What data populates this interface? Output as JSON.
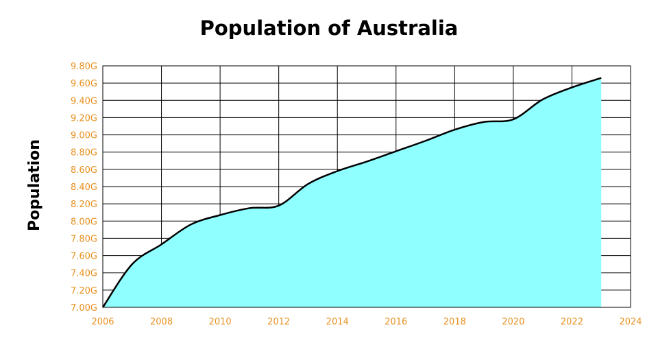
{
  "chart_data": {
    "type": "area",
    "title": "Population of Australia",
    "xlabel": "",
    "ylabel": "Population",
    "x": [
      2006,
      2007,
      2008,
      2009,
      2010,
      2011,
      2012,
      2013,
      2014,
      2015,
      2016,
      2017,
      2018,
      2019,
      2020,
      2021,
      2022,
      2023
    ],
    "series": [
      {
        "values": [
          7.0,
          7.5,
          7.73,
          7.96,
          8.07,
          8.15,
          8.18,
          8.43,
          8.58,
          8.69,
          8.81,
          8.93,
          9.06,
          9.15,
          9.18,
          9.41,
          9.55,
          9.66
        ]
      }
    ],
    "xlim": [
      2006,
      2024
    ],
    "ylim": [
      7.0,
      9.8
    ],
    "x_ticks": [
      2006,
      2008,
      2010,
      2012,
      2014,
      2016,
      2018,
      2020,
      2022,
      2024
    ],
    "x_tick_labels": [
      "2006",
      "2008",
      "2010",
      "2012",
      "2014",
      "2016",
      "2018",
      "2020",
      "2022",
      "2024"
    ],
    "y_ticks": [
      7.0,
      7.2,
      7.4,
      7.6,
      7.8,
      8.0,
      8.2,
      8.4,
      8.6,
      8.8,
      9.0,
      9.2,
      9.4,
      9.6,
      9.8
    ],
    "y_tick_labels": [
      "7.00G",
      "7.20G",
      "7.40G",
      "7.60G",
      "7.80G",
      "8.00G",
      "8.20G",
      "8.40G",
      "8.60G",
      "8.80G",
      "9.00G",
      "9.20G",
      "9.40G",
      "9.60G",
      "9.80G"
    ],
    "grid": true,
    "legend": "none",
    "colors": {
      "fill": "#8fffff",
      "line": "#000000",
      "tick_labels": "#e8901f",
      "grid": "#000000"
    }
  }
}
